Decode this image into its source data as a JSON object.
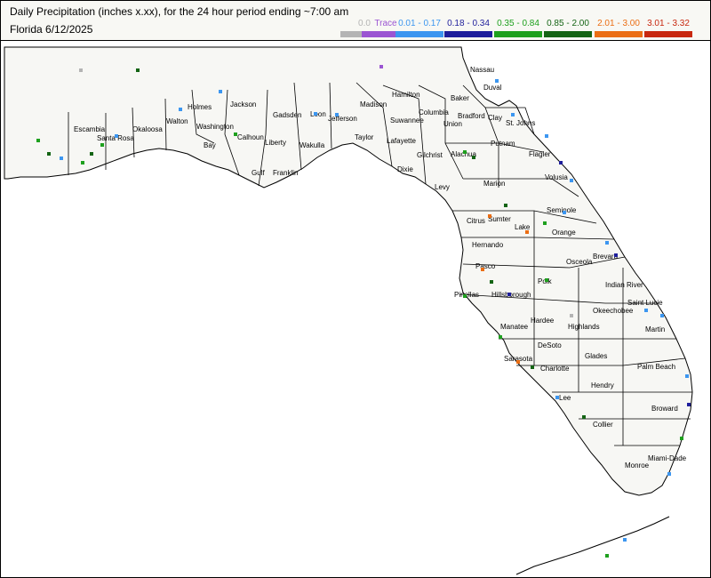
{
  "title": "Daily Precipitation (inches  x.xx),  for the 24 hour period ending ~7:00 am",
  "subtitle": "Florida 6/12/2025",
  "legend": [
    {
      "label": "0.0",
      "color": "#b4b4b4"
    },
    {
      "label": "Trace",
      "color": "#9b55d2"
    },
    {
      "label": "0.01 - 0.17",
      "color": "#3c96f0"
    },
    {
      "label": "0.18 - 0.34",
      "color": "#1e1e9b"
    },
    {
      "label": "0.35 - 0.84",
      "color": "#1ea01e"
    },
    {
      "label": "0.85 - 2.00",
      "color": "#146414"
    },
    {
      "label": "2.01 - 3.00",
      "color": "#eb6e14"
    },
    {
      "label": "3.01 - 3.32",
      "color": "#c8280f"
    }
  ],
  "counties": [
    "Escambia",
    "Santa Rosa",
    "Okaloosa",
    "Walton",
    "Holmes",
    "Washington",
    "Bay",
    "Jackson",
    "Calhoun",
    "Gulf",
    "Gadsden",
    "Liberty",
    "Franklin",
    "Leon",
    "Wakulla",
    "Jefferson",
    "Madison",
    "Taylor",
    "Hamilton",
    "Suwannee",
    "Lafayette",
    "Dixie",
    "Columbia",
    "Union",
    "Baker",
    "Bradford",
    "Nassau",
    "Duval",
    "Clay",
    "St. Johns",
    "Putnam",
    "Flagler",
    "Gilchrist",
    "Alachua",
    "Levy",
    "Marion",
    "Volusia",
    "Citrus",
    "Sumter",
    "Lake",
    "Seminole",
    "Hernando",
    "Orange",
    "Pasco",
    "Brevard",
    "Osceola",
    "Polk",
    "Pinellas",
    "Hillsborough",
    "Indian River",
    "Saint Lucie",
    "Okeechobee",
    "Hardee",
    "Highlands",
    "Manatee",
    "Martin",
    "DeSoto",
    "Sarasota",
    "Charlotte",
    "Glades",
    "Palm Beach",
    "Lee",
    "Hendry",
    "Broward",
    "Collier",
    "Miami-Dade",
    "Monroe"
  ]
}
